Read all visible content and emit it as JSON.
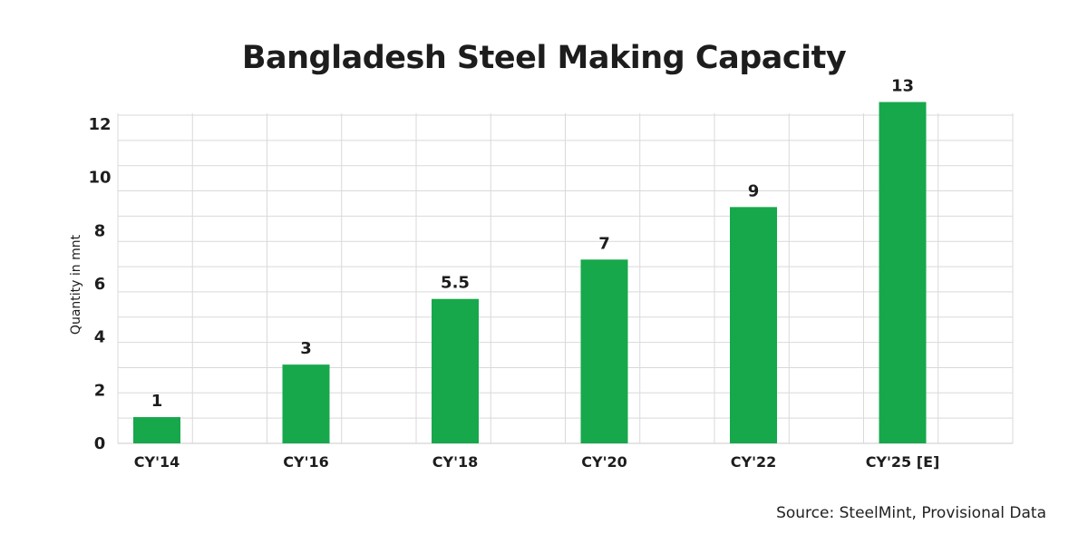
{
  "title": "Bangladesh Steel Making Capacity",
  "source": "Source: SteelMint, Provisional Data",
  "colors": {
    "bar": "#17a84b",
    "grid": "#d9d9d9",
    "text": "#1d1d1d"
  },
  "chart_data": {
    "type": "bar",
    "title": "Bangladesh Steel Making Capacity",
    "categories": [
      "CY'14",
      "CY'16",
      "CY'18",
      "CY'20",
      "CY'22",
      "CY'25 [E]"
    ],
    "values": [
      1,
      3,
      5.5,
      7,
      9,
      13
    ],
    "data_labels": [
      "1",
      "3",
      "5.5",
      "7",
      "9",
      "13"
    ],
    "ylabel": "Quantity in mnt",
    "xlabel": "",
    "y_ticks": [
      "0",
      "2",
      "4",
      "6",
      "8",
      "10",
      "12"
    ],
    "ylim": [
      0,
      12.5
    ],
    "grid": true,
    "legend": "none"
  }
}
